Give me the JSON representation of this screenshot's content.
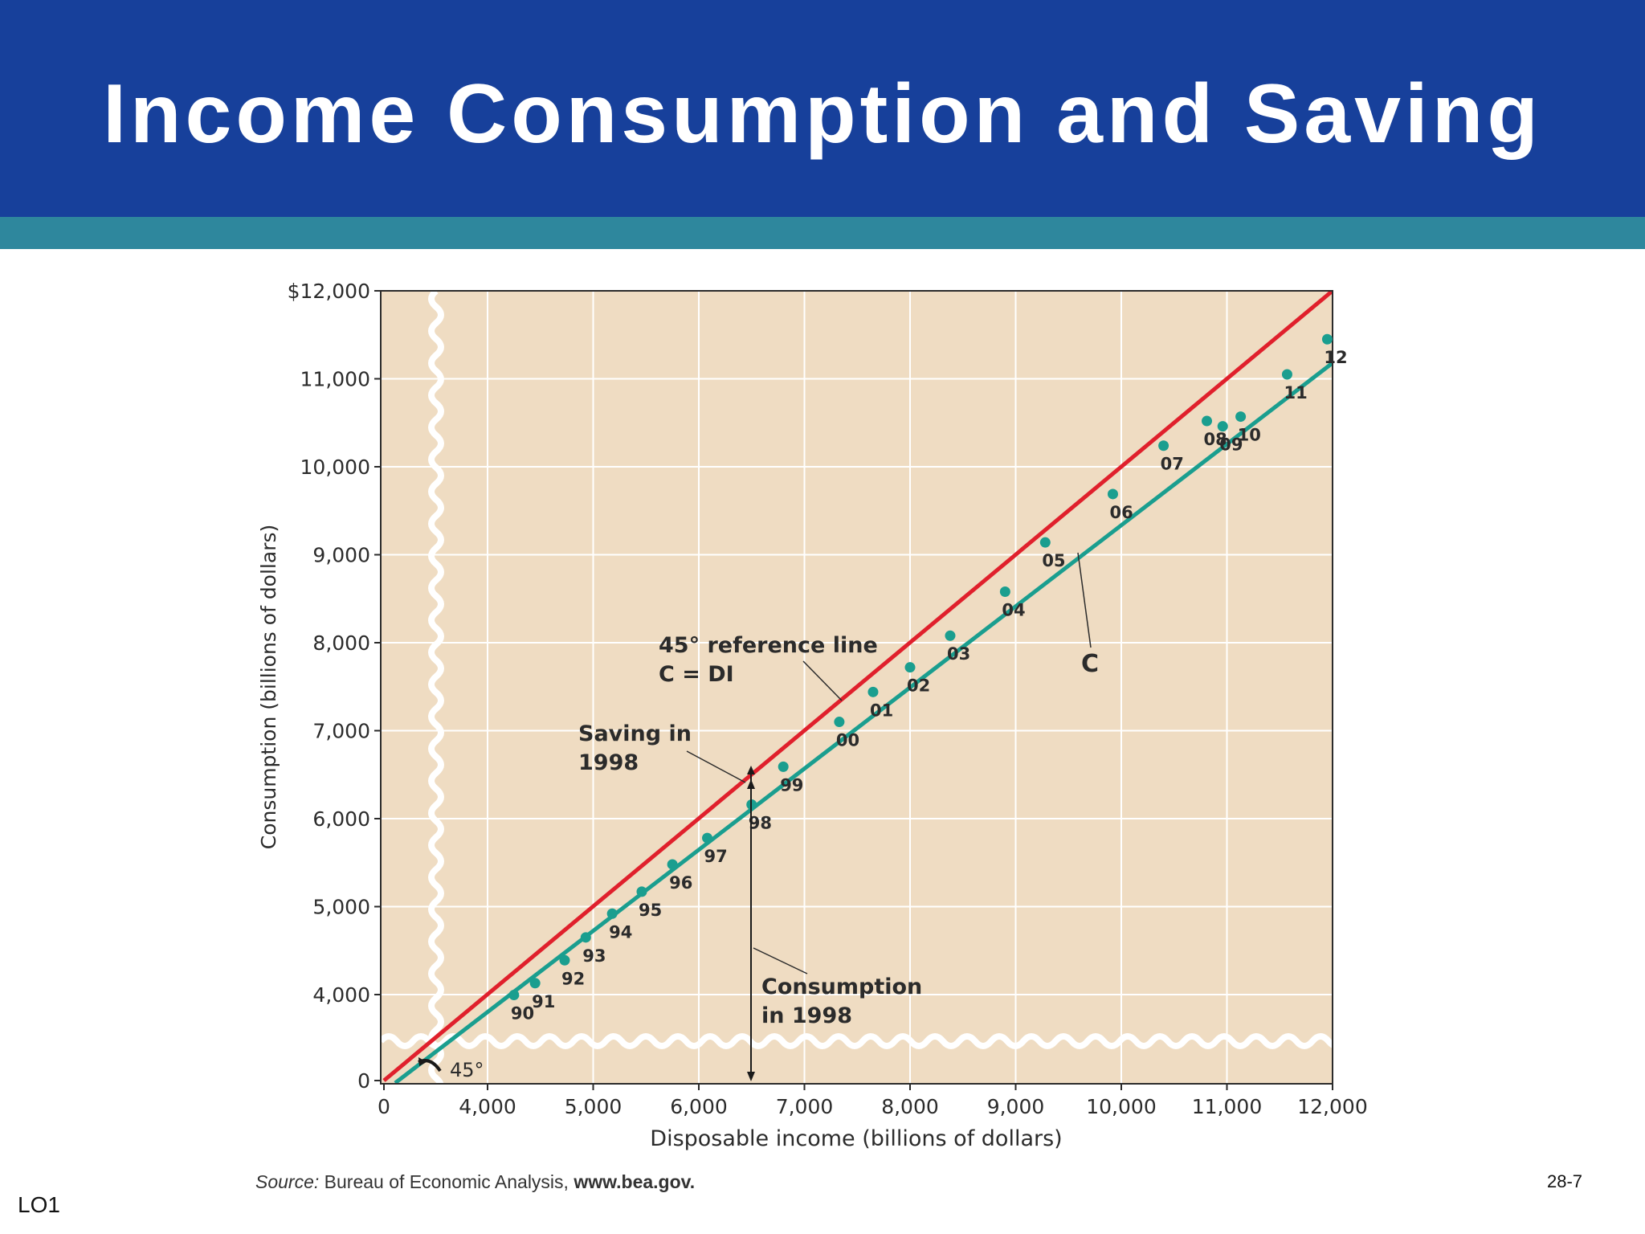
{
  "slide": {
    "title": "Income Consumption and Saving",
    "lo_label": "LO1",
    "page_number": "28-7",
    "source_label": "Source:",
    "source_text": "Bureau of Economic Analysis,",
    "source_url": "www.bea.gov."
  },
  "colors": {
    "header": "#17409b",
    "stripe": "#2e879d",
    "plot_bg": "#efdcc2",
    "reference_line": "#e0202c",
    "consumption_line": "#1a9e8f",
    "points": "#1a9e8f"
  },
  "chart_data": {
    "type": "scatter",
    "xlabel": "Disposable income (billions of dollars)",
    "ylabel": "Consumption (billions of dollars)",
    "axis_break": true,
    "grid": true,
    "x_ticks": [
      0,
      4000,
      5000,
      6000,
      7000,
      8000,
      9000,
      10000,
      11000,
      12000
    ],
    "x_tick_labels": [
      "0",
      "4,000",
      "5,000",
      "6,000",
      "7,000",
      "8,000",
      "9,000",
      "10,000",
      "11,000",
      "12,000"
    ],
    "y_ticks": [
      0,
      4000,
      5000,
      6000,
      7000,
      8000,
      9000,
      10000,
      11000,
      12000
    ],
    "y_tick_labels": [
      "0",
      "4,000",
      "5,000",
      "6,000",
      "7,000",
      "8,000",
      "9,000",
      "10,000",
      "11,000",
      "$12,000"
    ],
    "series": [
      {
        "points": [
          {
            "label": "90",
            "x": 4250,
            "y": 3980
          },
          {
            "label": "91",
            "x": 4450,
            "y": 4130
          },
          {
            "label": "92",
            "x": 4730,
            "y": 4390
          },
          {
            "label": "93",
            "x": 4930,
            "y": 4650
          },
          {
            "label": "94",
            "x": 5180,
            "y": 4920
          },
          {
            "label": "95",
            "x": 5460,
            "y": 5170
          },
          {
            "label": "96",
            "x": 5750,
            "y": 5480
          },
          {
            "label": "97",
            "x": 6080,
            "y": 5780
          },
          {
            "label": "98",
            "x": 6500,
            "y": 6160
          },
          {
            "label": "99",
            "x": 6800,
            "y": 6590
          },
          {
            "label": "00",
            "x": 7330,
            "y": 7100
          },
          {
            "label": "01",
            "x": 7650,
            "y": 7440
          },
          {
            "label": "02",
            "x": 8000,
            "y": 7720
          },
          {
            "label": "03",
            "x": 8380,
            "y": 8080
          },
          {
            "label": "04",
            "x": 8900,
            "y": 8580
          },
          {
            "label": "05",
            "x": 9280,
            "y": 9140
          },
          {
            "label": "06",
            "x": 9920,
            "y": 9690
          },
          {
            "label": "07",
            "x": 10400,
            "y": 10240
          },
          {
            "label": "08",
            "x": 10810,
            "y": 10520
          },
          {
            "label": "09",
            "x": 10960,
            "y": 10460
          },
          {
            "label": "10",
            "x": 11130,
            "y": 10570
          },
          {
            "label": "11",
            "x": 11570,
            "y": 11050
          },
          {
            "label": "12",
            "x": 11950,
            "y": 11450
          }
        ]
      }
    ],
    "reference_line": {
      "x": [
        0,
        12000
      ],
      "y": [
        0,
        12000
      ]
    },
    "consumption_line": {
      "x": [
        0,
        12000
      ],
      "y": [
        -200,
        11180
      ]
    },
    "angle_label": "45°",
    "c_label": "C",
    "annotations": {
      "ref_line_1": "45° reference line",
      "ref_line_2": "C = DI",
      "saving_1": "Saving in",
      "saving_2": "1998",
      "consumption_1": "Consumption",
      "consumption_2": "in 1998"
    }
  }
}
